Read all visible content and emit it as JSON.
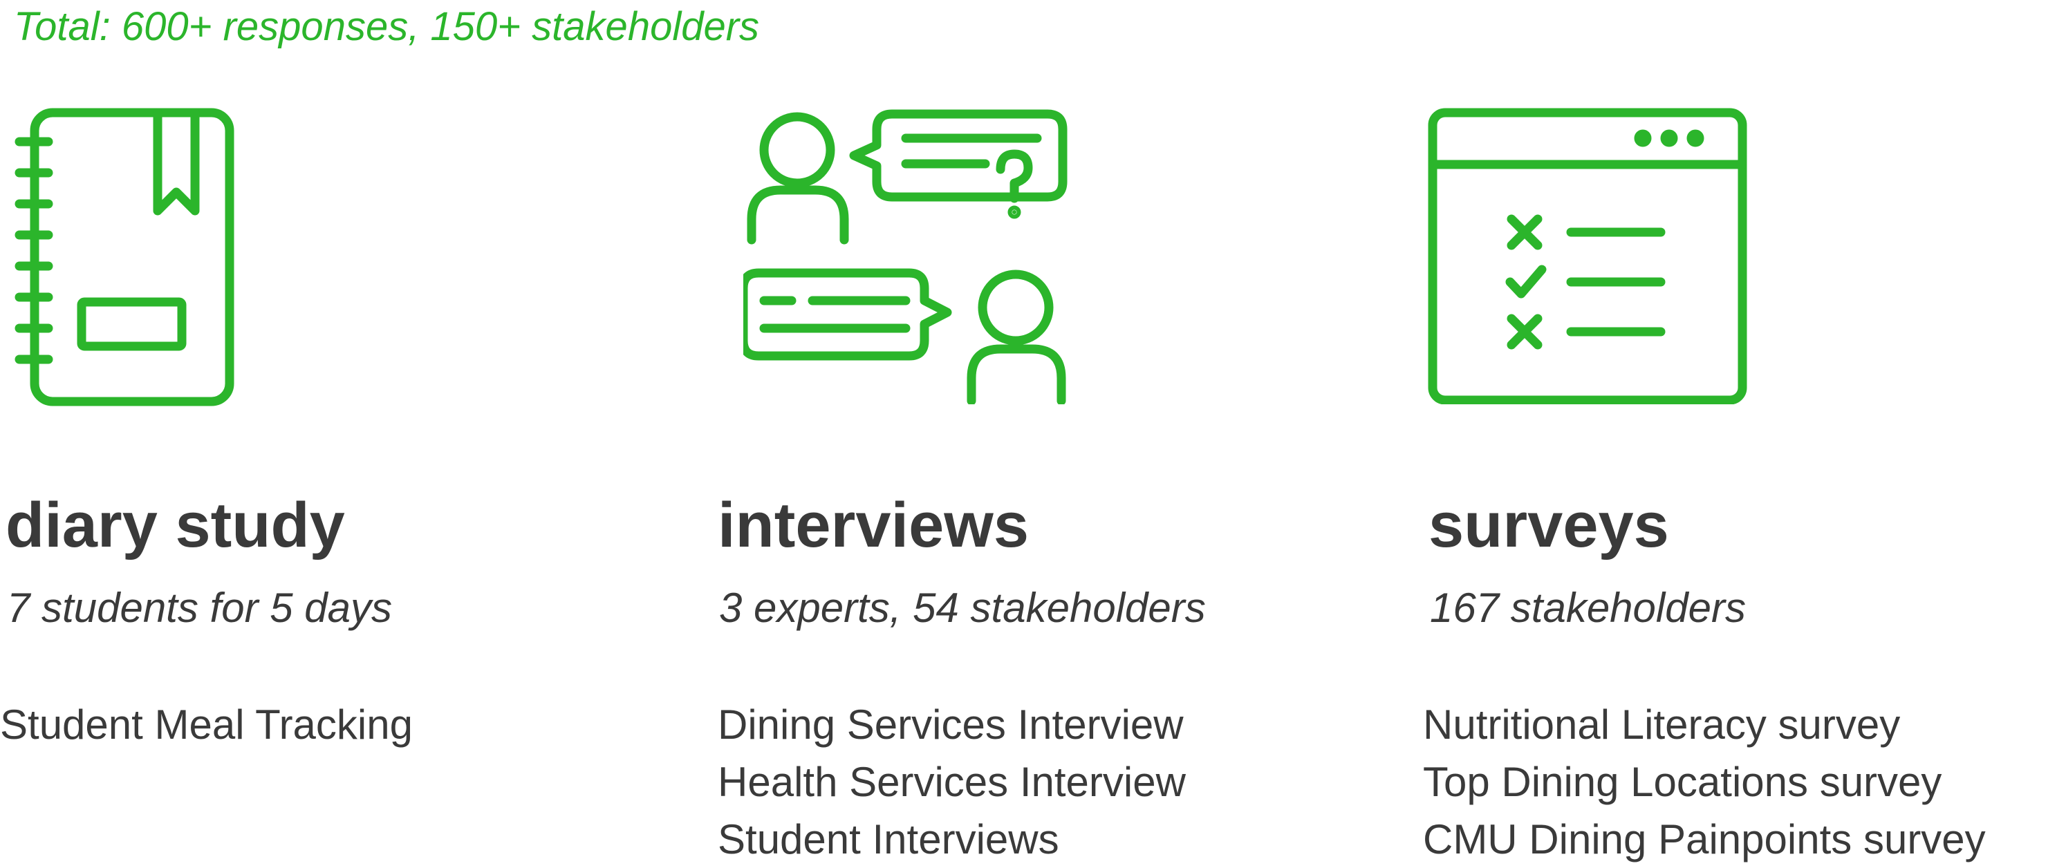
{
  "summary": {
    "total": "Total: 600+ responses, 150+ stakeholders"
  },
  "colors": {
    "accent": "#2bb52b",
    "text": "#3a3a3a",
    "background": "#ffffff"
  },
  "methods": [
    {
      "icon": "notebook-icon",
      "title": "diary study",
      "subtitle": "7 students for 5 days",
      "items": [
        "Student Meal Tracking"
      ]
    },
    {
      "icon": "interview-conversation-icon",
      "title": "interviews",
      "subtitle": "3 experts, 54 stakeholders",
      "items": [
        "Dining Services Interview",
        "Health Services Interview",
        "Student Interviews"
      ]
    },
    {
      "icon": "survey-window-icon",
      "title": "surveys",
      "subtitle": "167 stakeholders",
      "items": [
        "Nutritional Literacy survey",
        "Top Dining Locations survey",
        "CMU Dining Painpoints survey"
      ]
    }
  ]
}
